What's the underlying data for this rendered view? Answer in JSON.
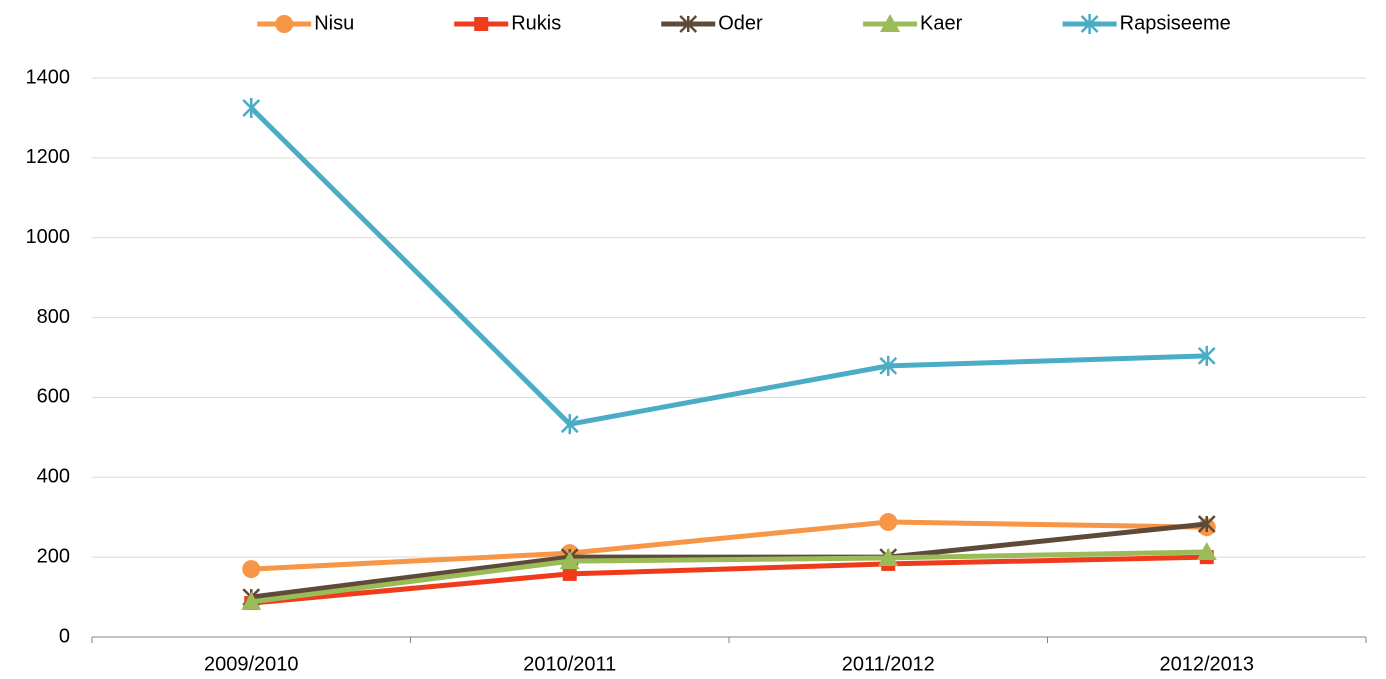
{
  "chart_data": {
    "type": "line",
    "categories": [
      "2009/2010",
      "2010/2011",
      "2011/2012",
      "2012/2013"
    ],
    "series": [
      {
        "name": "Nisu",
        "color": "#f79646",
        "marker": "circle",
        "values": [
          170,
          210,
          288,
          275
        ]
      },
      {
        "name": "Rukis",
        "color": "#ef3b1c",
        "marker": "square",
        "values": [
          85,
          158,
          183,
          200
        ]
      },
      {
        "name": "Oder",
        "color": "#5e4a38",
        "marker": "star",
        "values": [
          100,
          200,
          200,
          283
        ]
      },
      {
        "name": "Kaer",
        "color": "#9bbb59",
        "marker": "triangle",
        "values": [
          88,
          190,
          198,
          213
        ]
      },
      {
        "name": "Rapsiseeme",
        "color": "#4bacc6",
        "marker": "asterisk",
        "values": [
          1325,
          533,
          679,
          704
        ]
      }
    ],
    "ylim": [
      0,
      1400
    ],
    "yticks": [
      0,
      200,
      400,
      600,
      800,
      1000,
      1200,
      1400
    ],
    "grid": true,
    "legend": "top"
  }
}
